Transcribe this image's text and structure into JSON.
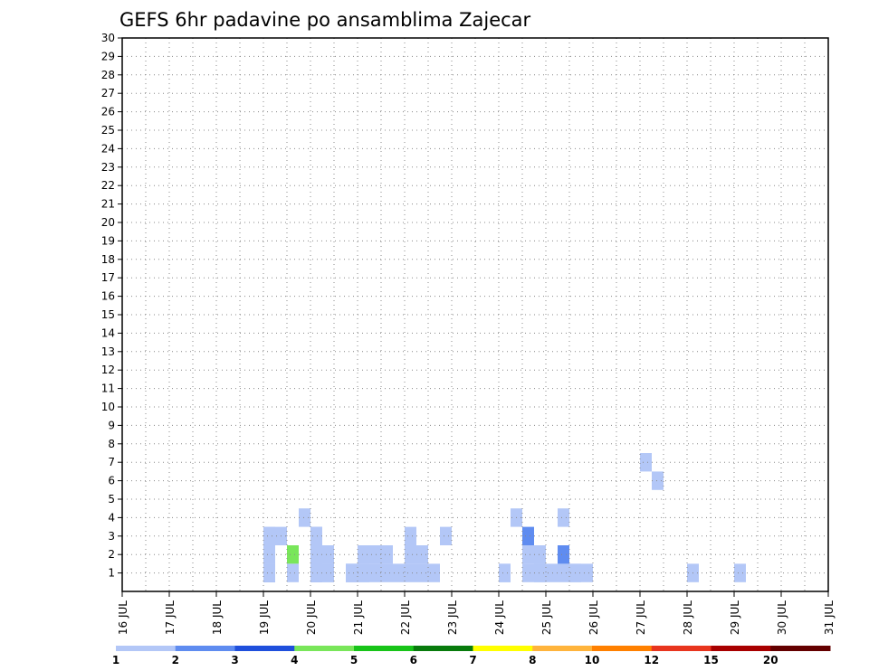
{
  "chart_data": {
    "type": "heatmap",
    "title": "GEFS 6hr padavine po ansamblima Zajecar",
    "xlabel": "",
    "ylabel": "",
    "x_tick_labels": [
      "16 JUL",
      "17 JUL",
      "18 JUL",
      "19 JUL",
      "20 JUL",
      "21 JUL",
      "22 JUL",
      "23 JUL",
      "24 JUL",
      "25 JUL",
      "26 JUL",
      "27 JUL",
      "28 JUL",
      "29 JUL",
      "30 JUL",
      "31 JUL"
    ],
    "y_tick_labels": [
      "1",
      "2",
      "3",
      "4",
      "5",
      "6",
      "7",
      "8",
      "9",
      "10",
      "11",
      "12",
      "13",
      "14",
      "15",
      "16",
      "17",
      "18",
      "19",
      "20",
      "21",
      "22",
      "23",
      "24",
      "25",
      "26",
      "27",
      "28",
      "29",
      "30"
    ],
    "xlim": [
      0,
      15
    ],
    "ylim": [
      0,
      30
    ],
    "grid": true,
    "colorbar": {
      "labels": [
        "1",
        "2",
        "3",
        "4",
        "5",
        "6",
        "7",
        "8",
        "10",
        "12",
        "15",
        "20"
      ],
      "colors": [
        "#b3c7f7",
        "#5f8cf0",
        "#1f4fdc",
        "#79e65a",
        "#18c419",
        "#087b0c",
        "#ffff00",
        "#ffb43c",
        "#ff8000",
        "#e8351e",
        "#a80000",
        "#640000"
      ]
    },
    "cells": [
      [
        3.0,
        1,
        1
      ],
      [
        4.0,
        1,
        1
      ],
      [
        4.0,
        1,
        2
      ],
      [
        3.0,
        1,
        1
      ],
      [
        4.0,
        1,
        1
      ],
      [
        4.0,
        2,
        3
      ],
      [
        4.25,
        1,
        1
      ],
      [
        4.0,
        3,
        3
      ],
      [
        4.0,
        2,
        3
      ],
      [
        4.0,
        1,
        1
      ],
      [
        4.25,
        2,
        1
      ],
      [
        4.25,
        1,
        1
      ],
      [
        4.0,
        1,
        1
      ],
      [
        4.0,
        2,
        1
      ],
      [
        4.25,
        2,
        1
      ],
      [
        4.0,
        2,
        1
      ],
      [
        4.0,
        1,
        1
      ],
      [
        6.0,
        1,
        1
      ],
      [
        8.5,
        1,
        1
      ],
      [
        8.75,
        1,
        1
      ],
      [
        8.5,
        2,
        1
      ],
      [
        8.75,
        2,
        1
      ],
      [
        12.0,
        1,
        1
      ],
      [
        13.0,
        1,
        1
      ],
      [
        11.0,
        7,
        1
      ],
      [
        11.25,
        6,
        1
      ],
      [
        3.0,
        3,
        1
      ],
      [
        4.0,
        3,
        1
      ],
      [
        4.0,
        3,
        1
      ],
      [
        4.0,
        1,
        1
      ],
      [
        4.0,
        1,
        1
      ],
      [
        3.0,
        1,
        2
      ],
      [
        3.5,
        2,
        4
      ],
      [
        4.0,
        1,
        1
      ],
      [
        8.0,
        1,
        1
      ],
      [
        9.0,
        1,
        1
      ],
      [
        9.25,
        1,
        1
      ],
      [
        9.5,
        1,
        1
      ],
      [
        9.75,
        1,
        1
      ],
      [
        3.0,
        3,
        1
      ],
      [
        3.25,
        3,
        1
      ],
      [
        3.5,
        1,
        1
      ],
      [
        3.75,
        4,
        1
      ],
      [
        4.0,
        2,
        1
      ],
      [
        4.75,
        1,
        1
      ],
      [
        5.0,
        1,
        1
      ],
      [
        5.25,
        1,
        1
      ],
      [
        5.5,
        1,
        1
      ],
      [
        5.75,
        1,
        1
      ],
      [
        6.0,
        2,
        1
      ],
      [
        6.25,
        1,
        1
      ],
      [
        3.0,
        1,
        1
      ],
      [
        3.0,
        2,
        1
      ],
      [
        4.75,
        1,
        1
      ],
      [
        5.0,
        1,
        1
      ],
      [
        5.25,
        2,
        1
      ],
      [
        5.5,
        2,
        1
      ],
      [
        6.0,
        3,
        1
      ],
      [
        6.25,
        2,
        1
      ],
      [
        6.5,
        1,
        1
      ],
      [
        6.75,
        3,
        1
      ],
      [
        8.5,
        3,
        2
      ],
      [
        8.75,
        1,
        1
      ],
      [
        8.75,
        2,
        1
      ],
      [
        9.25,
        4,
        1
      ],
      [
        9.25,
        2,
        2
      ],
      [
        9.5,
        1,
        1
      ],
      [
        3.0,
        1,
        1
      ],
      [
        3.0,
        2,
        1
      ],
      [
        4.75,
        1,
        1
      ],
      [
        5.0,
        2,
        1
      ],
      [
        8.0,
        1,
        1
      ],
      [
        8.25,
        4,
        1
      ]
    ]
  }
}
